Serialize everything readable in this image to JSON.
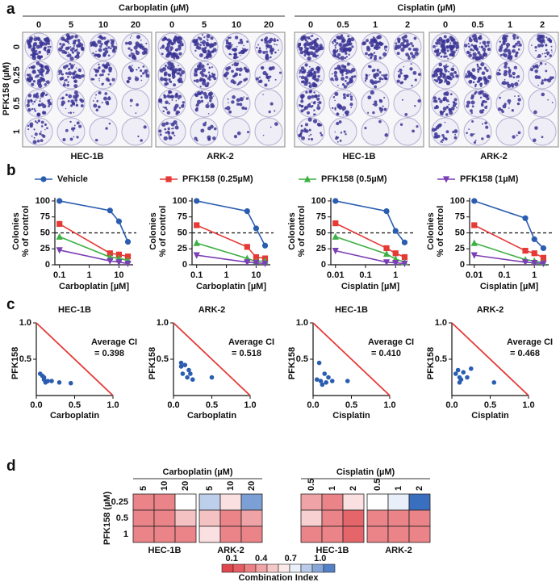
{
  "panel_labels": [
    "a",
    "b",
    "c",
    "d"
  ],
  "panel_a": {
    "row_title": "PFK158 (µM)",
    "rows": [
      "0",
      "0.25",
      "0.5",
      "1"
    ],
    "groups": [
      {
        "title": "Carboplatin (µM)",
        "doses": [
          "0",
          "5",
          "10",
          "20"
        ],
        "cell_lines": [
          "HEC-1B",
          "ARK-2"
        ]
      },
      {
        "title": "Cisplatin (µM)",
        "doses": [
          "0",
          "0.5",
          "1",
          "2"
        ],
        "cell_lines": [
          "HEC-1B",
          "ARK-2"
        ]
      }
    ]
  },
  "chart_data": [
    {
      "type": "line",
      "xlabel": "Carboplatin [µM]",
      "ylabel": [
        "Colonies",
        "% of control"
      ],
      "x": [
        0.1,
        5,
        10,
        20
      ],
      "xlim": [
        0.07,
        30
      ],
      "xticks": [
        0.1,
        1,
        10
      ],
      "log_x": true,
      "ylim": [
        0,
        105
      ],
      "yticks": [
        0,
        25,
        50,
        75,
        100
      ],
      "reference_line": 50,
      "series": [
        {
          "name": "Vehicle",
          "color": "#2a5db0",
          "marker": "circle",
          "values": [
            100,
            85,
            68,
            36
          ]
        },
        {
          "name": "PFK158 (0.25µM)",
          "color": "#e53935",
          "marker": "square",
          "values": [
            64,
            18,
            16,
            13
          ]
        },
        {
          "name": "PFK158 (0.5µM)",
          "color": "#3cb043",
          "marker": "triangle-up",
          "values": [
            44,
            12,
            10,
            7
          ]
        },
        {
          "name": "PFK158 (1µM)",
          "color": "#7b3fb5",
          "marker": "triangle-down",
          "values": [
            23,
            6,
            4,
            2
          ]
        }
      ]
    },
    {
      "type": "line",
      "xlabel": "Carboplatin [µM]",
      "ylabel": [
        "Colonies",
        "% of control"
      ],
      "x": [
        0.1,
        5,
        10,
        20
      ],
      "xlim": [
        0.07,
        30
      ],
      "xticks": [
        0.1,
        1,
        10
      ],
      "log_x": true,
      "ylim": [
        0,
        105
      ],
      "yticks": [
        0,
        25,
        50,
        75,
        100
      ],
      "reference_line": 50,
      "series": [
        {
          "name": "Vehicle",
          "color": "#2a5db0",
          "marker": "circle",
          "values": [
            100,
            84,
            57,
            30
          ]
        },
        {
          "name": "PFK158 (0.25µM)",
          "color": "#e53935",
          "marker": "square",
          "values": [
            62,
            28,
            12,
            10
          ]
        },
        {
          "name": "PFK158 (0.5µM)",
          "color": "#3cb043",
          "marker": "triangle-up",
          "values": [
            34,
            10,
            5,
            6
          ]
        },
        {
          "name": "PFK158 (1µM)",
          "color": "#7b3fb5",
          "marker": "triangle-down",
          "values": [
            15,
            4,
            3,
            2
          ]
        }
      ]
    },
    {
      "type": "line",
      "xlabel": "Cisplatin [µM]",
      "ylabel": [
        "Colonies",
        "% of control"
      ],
      "x": [
        0.01,
        0.5,
        1,
        2
      ],
      "xlim": [
        0.007,
        3
      ],
      "xticks": [
        0.01,
        0.1,
        1
      ],
      "log_x": true,
      "ylim": [
        0,
        105
      ],
      "yticks": [
        0,
        25,
        50,
        75,
        100
      ],
      "reference_line": 50,
      "series": [
        {
          "name": "Vehicle",
          "color": "#2a5db0",
          "marker": "circle",
          "values": [
            100,
            84,
            53,
            35
          ]
        },
        {
          "name": "PFK158 (0.25µM)",
          "color": "#e53935",
          "marker": "square",
          "values": [
            65,
            26,
            18,
            12
          ]
        },
        {
          "name": "PFK158 (0.5µM)",
          "color": "#3cb043",
          "marker": "triangle-up",
          "values": [
            44,
            17,
            9,
            4
          ]
        },
        {
          "name": "PFK158 (1µM)",
          "color": "#7b3fb5",
          "marker": "triangle-down",
          "values": [
            22,
            4,
            3,
            2
          ]
        }
      ]
    },
    {
      "type": "line",
      "xlabel": "Cisplatin [µM]",
      "ylabel": [
        "Colonies",
        "% of control"
      ],
      "x": [
        0.01,
        0.5,
        1,
        2
      ],
      "xlim": [
        0.007,
        3
      ],
      "xticks": [
        0.01,
        0.1,
        1
      ],
      "log_x": true,
      "ylim": [
        0,
        105
      ],
      "yticks": [
        0,
        25,
        50,
        75,
        100
      ],
      "reference_line": 50,
      "series": [
        {
          "name": "Vehicle",
          "color": "#2a5db0",
          "marker": "circle",
          "values": [
            100,
            73,
            40,
            26
          ]
        },
        {
          "name": "PFK158 (0.25µM)",
          "color": "#e53935",
          "marker": "square",
          "values": [
            62,
            22,
            18,
            11
          ]
        },
        {
          "name": "PFK158 (0.5µM)",
          "color": "#3cb043",
          "marker": "triangle-up",
          "values": [
            34,
            8,
            6,
            3
          ]
        },
        {
          "name": "PFK158 (1µM)",
          "color": "#7b3fb5",
          "marker": "triangle-down",
          "values": [
            15,
            4,
            3,
            2
          ]
        }
      ]
    },
    {
      "type": "scatter",
      "title": "HEC-1B",
      "xlabel": "Carboplatin",
      "ylabel": "PFK158",
      "annotation": [
        "Average CI",
        "= 0.398"
      ],
      "color": "#2a5db0",
      "additivity_color": "#e53935",
      "x": [
        0.05,
        0.08,
        0.1,
        0.12,
        0.15,
        0.1,
        0.2,
        0.3,
        0.45
      ],
      "values": [
        0.3,
        0.27,
        0.22,
        0.18,
        0.2,
        0.25,
        0.2,
        0.18,
        0.17
      ],
      "xlim": [
        0,
        1
      ],
      "ylim": [
        0,
        1
      ],
      "xticks": [
        {
          "value": 0,
          "label": "0.0"
        },
        0.5,
        {
          "value": 1,
          "label": "1.0"
        }
      ],
      "yticks": [
        0.5,
        {
          "value": 1,
          "label": "1.0"
        }
      ]
    },
    {
      "type": "scatter",
      "title": "ARK-2",
      "xlabel": "Carboplatin",
      "ylabel": "PFK158",
      "annotation": [
        "Average CI",
        "= 0.518"
      ],
      "color": "#2a5db0",
      "additivity_color": "#e53935",
      "x": [
        0.1,
        0.15,
        0.2,
        0.12,
        0.22,
        0.18,
        0.25,
        0.1,
        0.5
      ],
      "values": [
        0.45,
        0.42,
        0.35,
        0.3,
        0.3,
        0.25,
        0.22,
        0.4,
        0.25
      ],
      "xlim": [
        0,
        1
      ],
      "ylim": [
        0,
        1
      ],
      "xticks": [
        {
          "value": 0,
          "label": "0.0"
        },
        0.5,
        {
          "value": 1,
          "label": "1.0"
        }
      ],
      "yticks": [
        0.5,
        {
          "value": 1,
          "label": "1.0"
        }
      ]
    },
    {
      "type": "scatter",
      "title": "HEC-1B",
      "xlabel": "Cisplatin",
      "ylabel": "PFK158",
      "annotation": [
        "Average CI",
        "= 0.410"
      ],
      "color": "#2a5db0",
      "additivity_color": "#e53935",
      "x": [
        0.05,
        0.1,
        0.15,
        0.2,
        0.12,
        0.17,
        0.25,
        0.08,
        0.45
      ],
      "values": [
        0.22,
        0.2,
        0.3,
        0.25,
        0.15,
        0.18,
        0.2,
        0.45,
        0.2
      ],
      "xlim": [
        0,
        1
      ],
      "ylim": [
        0,
        1
      ],
      "xticks": [
        {
          "value": 0,
          "label": "0.0"
        },
        0.5,
        {
          "value": 1,
          "label": "1.0"
        }
      ],
      "yticks": [
        0.5,
        {
          "value": 1,
          "label": "1.0"
        }
      ]
    },
    {
      "type": "scatter",
      "title": "ARK-2",
      "xlabel": "Cisplatin",
      "ylabel": "PFK158",
      "annotation": [
        "Average CI",
        "= 0.468"
      ],
      "color": "#2a5db0",
      "additivity_color": "#e53935",
      "x": [
        0.05,
        0.08,
        0.1,
        0.15,
        0.2,
        0.25,
        0.1,
        0.55,
        0.12
      ],
      "values": [
        0.3,
        0.35,
        0.18,
        0.32,
        0.25,
        0.37,
        0.25,
        0.18,
        0.22
      ],
      "xlim": [
        0,
        1
      ],
      "ylim": [
        0,
        1
      ],
      "xticks": [
        {
          "value": 0,
          "label": "0.0"
        },
        0.5,
        {
          "value": 1,
          "label": "1.0"
        }
      ],
      "yticks": [
        0.5,
        {
          "value": 1,
          "label": "1.0"
        }
      ]
    },
    {
      "type": "heatmap",
      "title": "HEC-1B",
      "categories": [
        "5",
        "10",
        "20"
      ],
      "values": [
        [
          0.3,
          0.3,
          0.7
        ],
        [
          0.3,
          0.3,
          0.5
        ],
        [
          0.3,
          0.3,
          0.3
        ]
      ]
    },
    {
      "type": "heatmap",
      "title": "ARK-2",
      "categories": [
        "5",
        "10",
        "20"
      ],
      "values": [
        [
          0.85,
          0.6,
          1.0
        ],
        [
          0.5,
          0.3,
          0.4
        ],
        [
          0.6,
          0.3,
          0.3
        ]
      ]
    },
    {
      "type": "heatmap",
      "title": "HEC-1B",
      "categories": [
        "0.5",
        "1",
        "2"
      ],
      "values": [
        [
          0.4,
          0.3,
          0.6
        ],
        [
          0.55,
          0.3,
          0.2
        ],
        [
          0.3,
          0.3,
          0.2
        ]
      ]
    },
    {
      "type": "heatmap",
      "title": "ARK-2",
      "categories": [
        "0.5",
        "1",
        "2"
      ],
      "values": [
        [
          0.7,
          0.75,
          1.2
        ],
        [
          0.3,
          0.3,
          0.3
        ],
        [
          0.3,
          0.3,
          0.3
        ]
      ]
    }
  ],
  "panel_d": {
    "group_titles": [
      "Carboplatin (µM)",
      "Cisplatin (µM)"
    ],
    "row_title": "PFK158 (µM)",
    "rows": [
      "0.25",
      "0.5",
      "1"
    ],
    "colorbar": {
      "title": "Combination Index",
      "clim": [
        0,
        1.15
      ],
      "center": 0.7,
      "low_color": "#e0474c",
      "high_color": "#3a6fc0",
      "ticks": [
        0.1,
        0.4,
        0.7,
        {
          "value": 1,
          "label": "1.0"
        }
      ]
    }
  }
}
